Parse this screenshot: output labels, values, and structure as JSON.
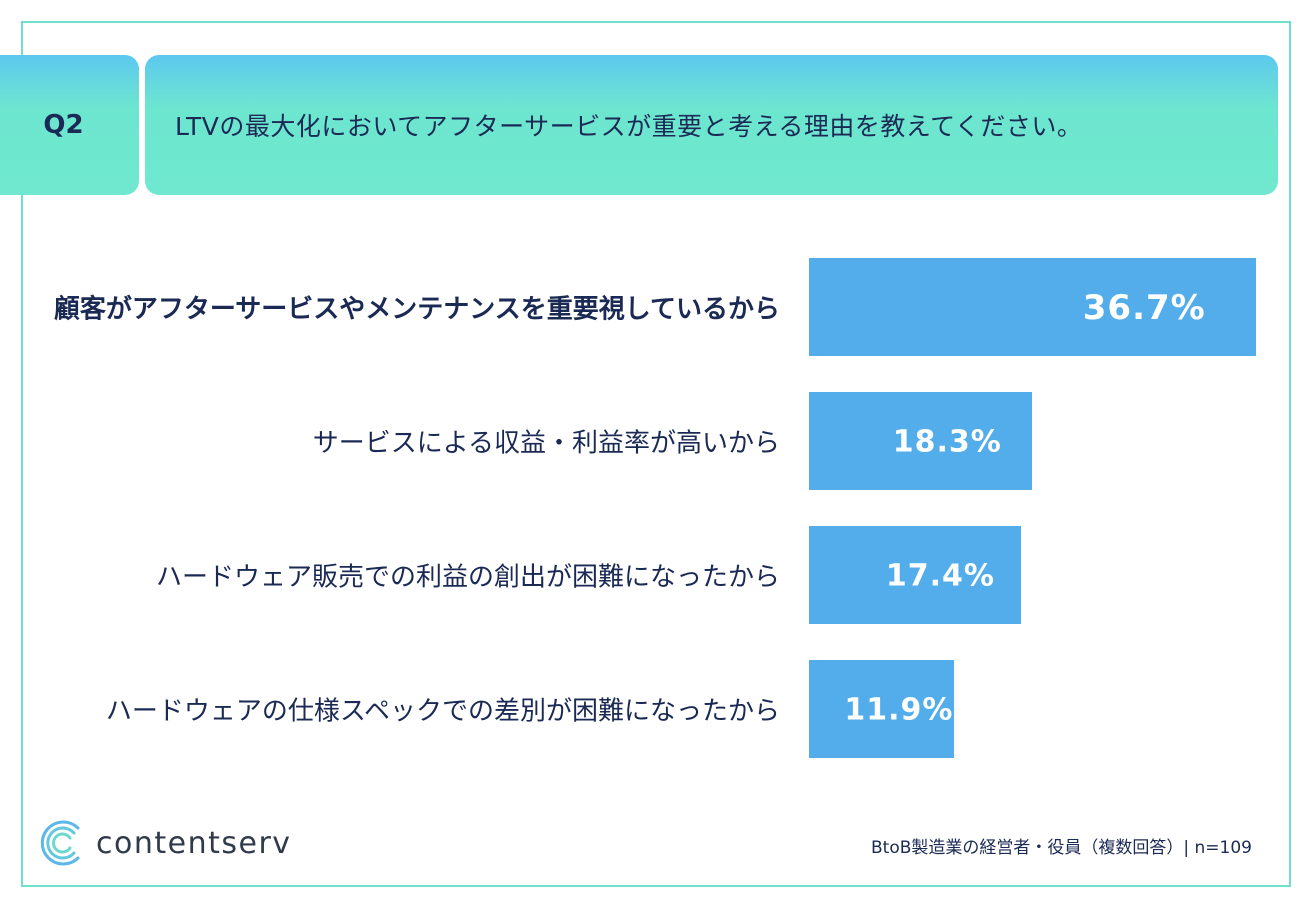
{
  "header": {
    "q_label": "Q2",
    "title": "LTVの最大化においてアフターサービスが重要と考える理由を教えてください。"
  },
  "chart_data": {
    "type": "bar",
    "orientation": "horizontal",
    "categories": [
      "顧客がアフターサービスやメンテナンスを重要視しているから",
      "サービスによる収益・利益率が高いから",
      "ハードウェア販売での利益の創出が困難になったから",
      "ハードウェアの仕様スペックでの差別が困難になったから"
    ],
    "values": [
      36.7,
      18.3,
      17.4,
      11.9
    ],
    "value_labels": [
      "36.7%",
      "18.3%",
      "17.4%",
      "11.9%"
    ],
    "xlim": [
      0,
      36.7
    ],
    "bar_color": "#52adea",
    "highlight_index": 0
  },
  "brand": {
    "logo_text": "contentserv",
    "logo_icon": "contentserv-logo-icon"
  },
  "footnote": "BtoB製造業の経営者・役員（複数回答）| n=109",
  "colors": {
    "accent_border": "#6fe0cc",
    "text": "#1b2a55"
  }
}
